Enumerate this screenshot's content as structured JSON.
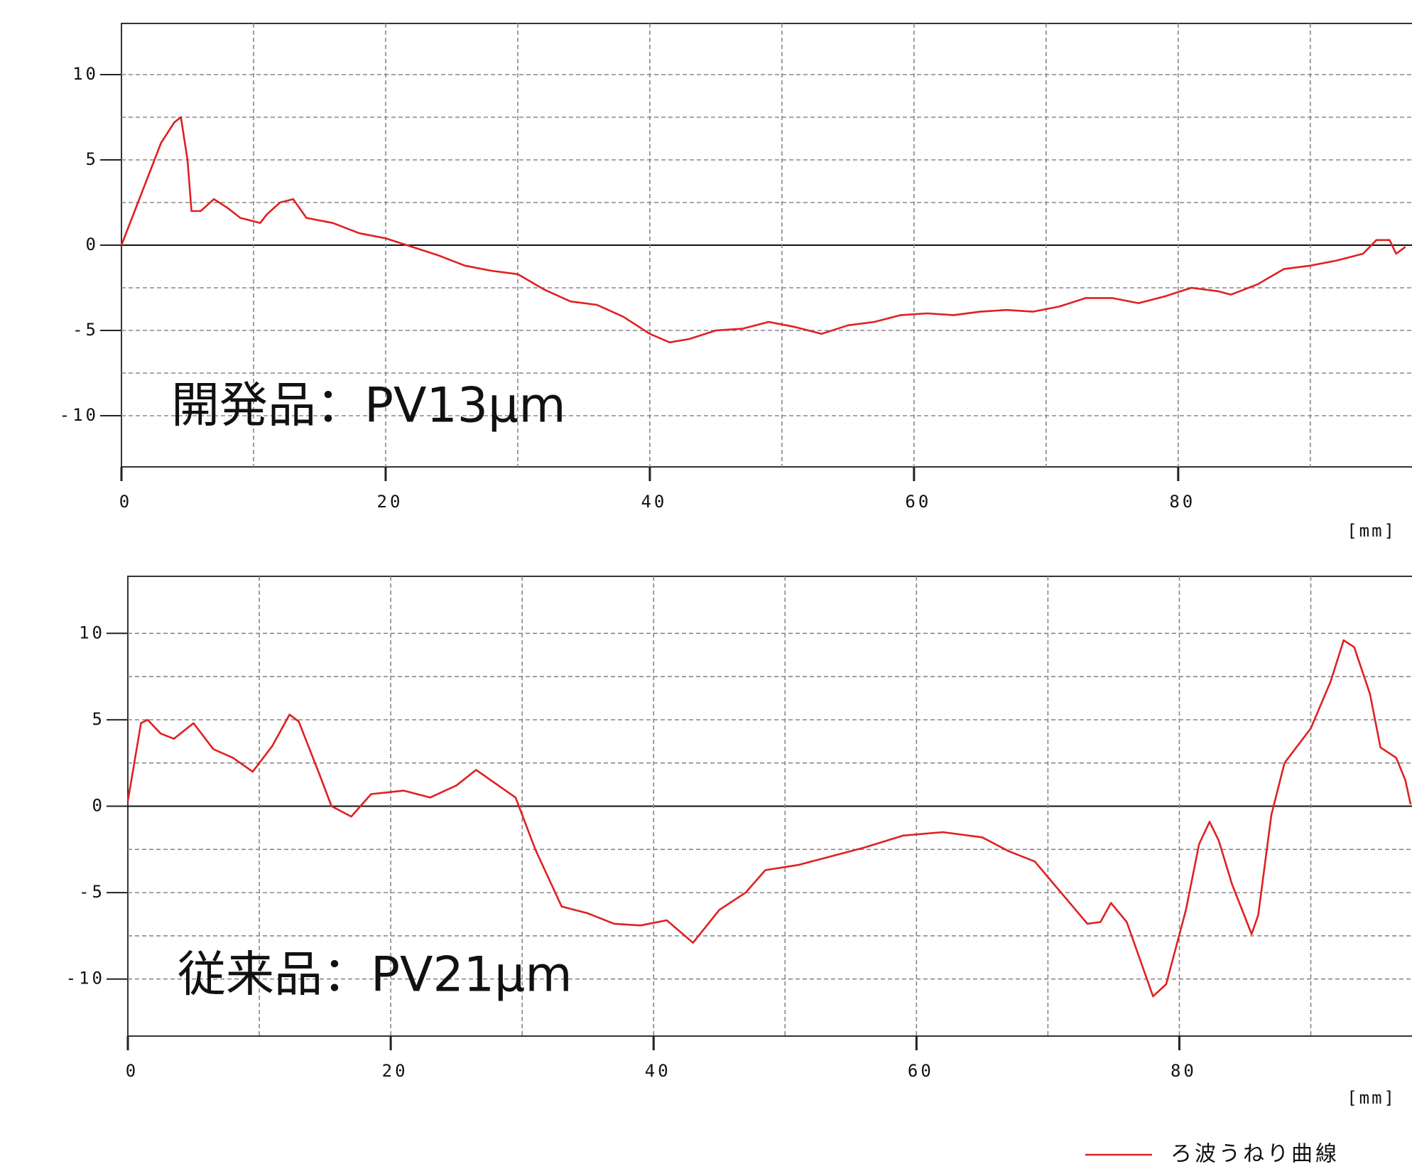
{
  "chart_data": [
    {
      "type": "line",
      "annotation": "開発品：PV13μm",
      "x_label": "[mm]",
      "xlim": [
        0,
        97.7
      ],
      "xticks": [
        0,
        20,
        40,
        60,
        80
      ],
      "ylim": [
        -13,
        13
      ],
      "yticks": [
        -10,
        -5,
        0,
        5,
        10
      ],
      "grid": true,
      "x": [
        0,
        1,
        2,
        3,
        4,
        4.5,
        5,
        5.3,
        6,
        7,
        8,
        9,
        10.5,
        11,
        12,
        13,
        14,
        16,
        18,
        20,
        22,
        24,
        26,
        28,
        30,
        32,
        34,
        36,
        38,
        40,
        41.5,
        43,
        45,
        47,
        49,
        51,
        53,
        55,
        57,
        59,
        61,
        63,
        65,
        67,
        69,
        71,
        73,
        75,
        77,
        79,
        81,
        83,
        84,
        86,
        88,
        90,
        92,
        94,
        95,
        96,
        96.5,
        97.2
      ],
      "series": [
        {
          "color": "#e02020",
          "values": [
            0,
            2,
            4,
            6,
            7.2,
            7.5,
            5,
            2,
            2,
            2.7,
            2.2,
            1.6,
            1.3,
            1.8,
            2.5,
            2.7,
            1.6,
            1.3,
            0.7,
            0.4,
            -0.1,
            -0.6,
            -1.2,
            -1.5,
            -1.7,
            -2.6,
            -3.3,
            -3.5,
            -4.2,
            -5.2,
            -5.7,
            -5.5,
            -5,
            -4.9,
            -4.5,
            -4.8,
            -5.2,
            -4.7,
            -4.5,
            -4.1,
            -4,
            -4.1,
            -3.9,
            -3.8,
            -3.9,
            -3.6,
            -3.1,
            -3.1,
            -3.4,
            -3,
            -2.5,
            -2.7,
            -2.9,
            -2.3,
            -1.4,
            -1.2,
            -0.9,
            -0.5,
            0.3,
            0.3,
            -0.5,
            -0.1
          ]
        }
      ]
    },
    {
      "type": "line",
      "annotation": "従来品：PV21μm",
      "x_label": "[mm]",
      "xlim": [
        0,
        97.7
      ],
      "xticks": [
        0,
        20,
        40,
        60,
        80
      ],
      "ylim": [
        -13.3,
        13.3
      ],
      "yticks": [
        -10,
        -5,
        0,
        5,
        10
      ],
      "grid": true,
      "x": [
        0,
        1,
        1.5,
        2.5,
        3.5,
        5,
        6.5,
        8,
        9.5,
        11,
        12.3,
        13,
        14.5,
        15.5,
        17,
        18.5,
        21,
        23,
        25,
        26.5,
        28,
        29.5,
        31,
        33,
        35,
        37,
        39,
        41,
        43,
        45,
        47,
        48.5,
        51,
        53,
        56,
        59,
        62,
        65,
        67,
        69,
        71,
        73,
        74,
        74.8,
        76,
        78,
        79,
        80.5,
        81.5,
        82.3,
        83,
        84,
        85.5,
        86,
        87,
        88,
        90,
        91.5,
        92.5,
        93.3,
        94.5,
        95.3,
        96.5,
        97.2,
        97.6
      ],
      "series": [
        {
          "name": "ろ波うねり曲線",
          "color": "#e02020",
          "values": [
            0.3,
            4.8,
            5,
            4.2,
            3.9,
            4.8,
            3.3,
            2.8,
            2,
            3.5,
            5.3,
            4.9,
            2,
            0,
            -0.6,
            0.7,
            0.9,
            0.5,
            1.2,
            2.1,
            1.3,
            0.5,
            -2.5,
            -5.8,
            -6.2,
            -6.8,
            -6.9,
            -6.6,
            -7.9,
            -6,
            -5,
            -3.7,
            -3.4,
            -3,
            -2.4,
            -1.7,
            -1.5,
            -1.8,
            -2.6,
            -3.2,
            -5,
            -6.8,
            -6.7,
            -5.6,
            -6.7,
            -11,
            -10.3,
            -6,
            -2.2,
            -0.9,
            -2,
            -4.5,
            -7.4,
            -6.3,
            -0.5,
            2.5,
            4.5,
            7.2,
            9.6,
            9.2,
            6.5,
            3.4,
            2.8,
            1.5,
            0.1
          ]
        }
      ]
    }
  ]
}
